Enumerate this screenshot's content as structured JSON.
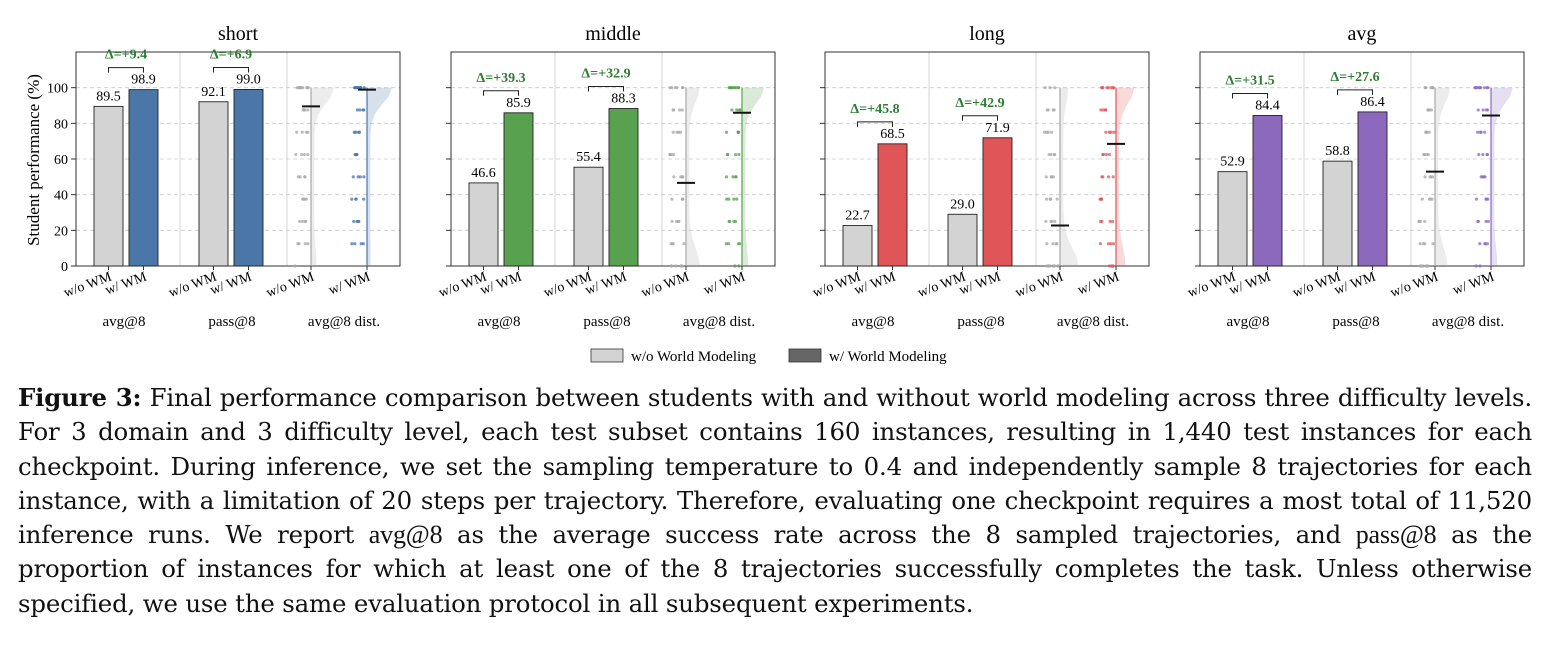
{
  "chart_data": {
    "type": "bar",
    "ylabel": "Student performance (%)",
    "ylim": [
      0,
      120
    ],
    "yticks": [
      0,
      20,
      40,
      60,
      80,
      100
    ],
    "grid": true,
    "xticklabels": [
      "w/o WM",
      "w/ WM"
    ],
    "groups": [
      "avg@8",
      "pass@8",
      "avg@8 dist."
    ],
    "legend": {
      "placement": "bottom-center",
      "entries": [
        {
          "label": "w/o World Modeling",
          "color": "#d3d3d3"
        },
        {
          "label": "w/ World Modeling",
          "color": "#666666"
        }
      ]
    },
    "panels": [
      {
        "title": "short",
        "color": "#4a76a8",
        "avg": {
          "without": 89.5,
          "with": 98.9,
          "delta": "Δ=+9.4"
        },
        "pass": {
          "without": 92.1,
          "with": 99.0,
          "delta": "Δ=+6.9"
        },
        "labels": {
          "avg_without": "89.5",
          "avg_with": "98.9",
          "pass_without": "92.1",
          "pass_with": "99.0"
        }
      },
      {
        "title": "middle",
        "color": "#58a14f",
        "avg": {
          "without": 46.6,
          "with": 85.9,
          "delta": "Δ=+39.3"
        },
        "pass": {
          "without": 55.4,
          "with": 88.3,
          "delta": "Δ=+32.9"
        },
        "labels": {
          "avg_without": "46.6",
          "avg_with": "85.9",
          "pass_without": "55.4",
          "pass_with": "88.3"
        }
      },
      {
        "title": "long",
        "color": "#e05558",
        "avg": {
          "without": 22.7,
          "with": 68.5,
          "delta": "Δ=+45.8"
        },
        "pass": {
          "without": 29.0,
          "with": 71.9,
          "delta": "Δ=+42.9"
        },
        "labels": {
          "avg_without": "22.7",
          "avg_with": "68.5",
          "pass_without": "29.0",
          "pass_with": "71.9"
        }
      },
      {
        "title": "avg",
        "color": "#8d69bd",
        "avg": {
          "without": 52.9,
          "with": 84.4,
          "delta": "Δ=+31.5"
        },
        "pass": {
          "without": 58.8,
          "with": 86.4,
          "delta": "Δ=+27.6"
        },
        "labels": {
          "avg_without": "52.9",
          "avg_with": "84.4",
          "pass_without": "58.8",
          "pass_with": "86.4"
        }
      }
    ]
  },
  "caption": {
    "label": "Figure 3:",
    "part1": "Final performance comparison between students with and without world modeling across three difficulty levels. For 3 domain and 3 difficulty level, each test subset contains 160 instances, resulting in 1,440 test instances for each checkpoint. During inference, we set the sampling temperature to 0.4 and independently sample 8 trajectories for each instance, with a limitation of 20 steps per trajectory. Therefore, evaluating one checkpoint requires a most total of 11,520 inference runs. We report ",
    "metric_avg": "avg@8",
    "part2": " as the average success rate across the 8 sampled trajectories, and ",
    "metric_pass": "pass@8",
    "part3": " as the proportion of instances for which at least one of the 8 trajectories successfully completes the task. Unless otherwise specified, we use the same evaluation protocol in all subsequent experiments."
  }
}
